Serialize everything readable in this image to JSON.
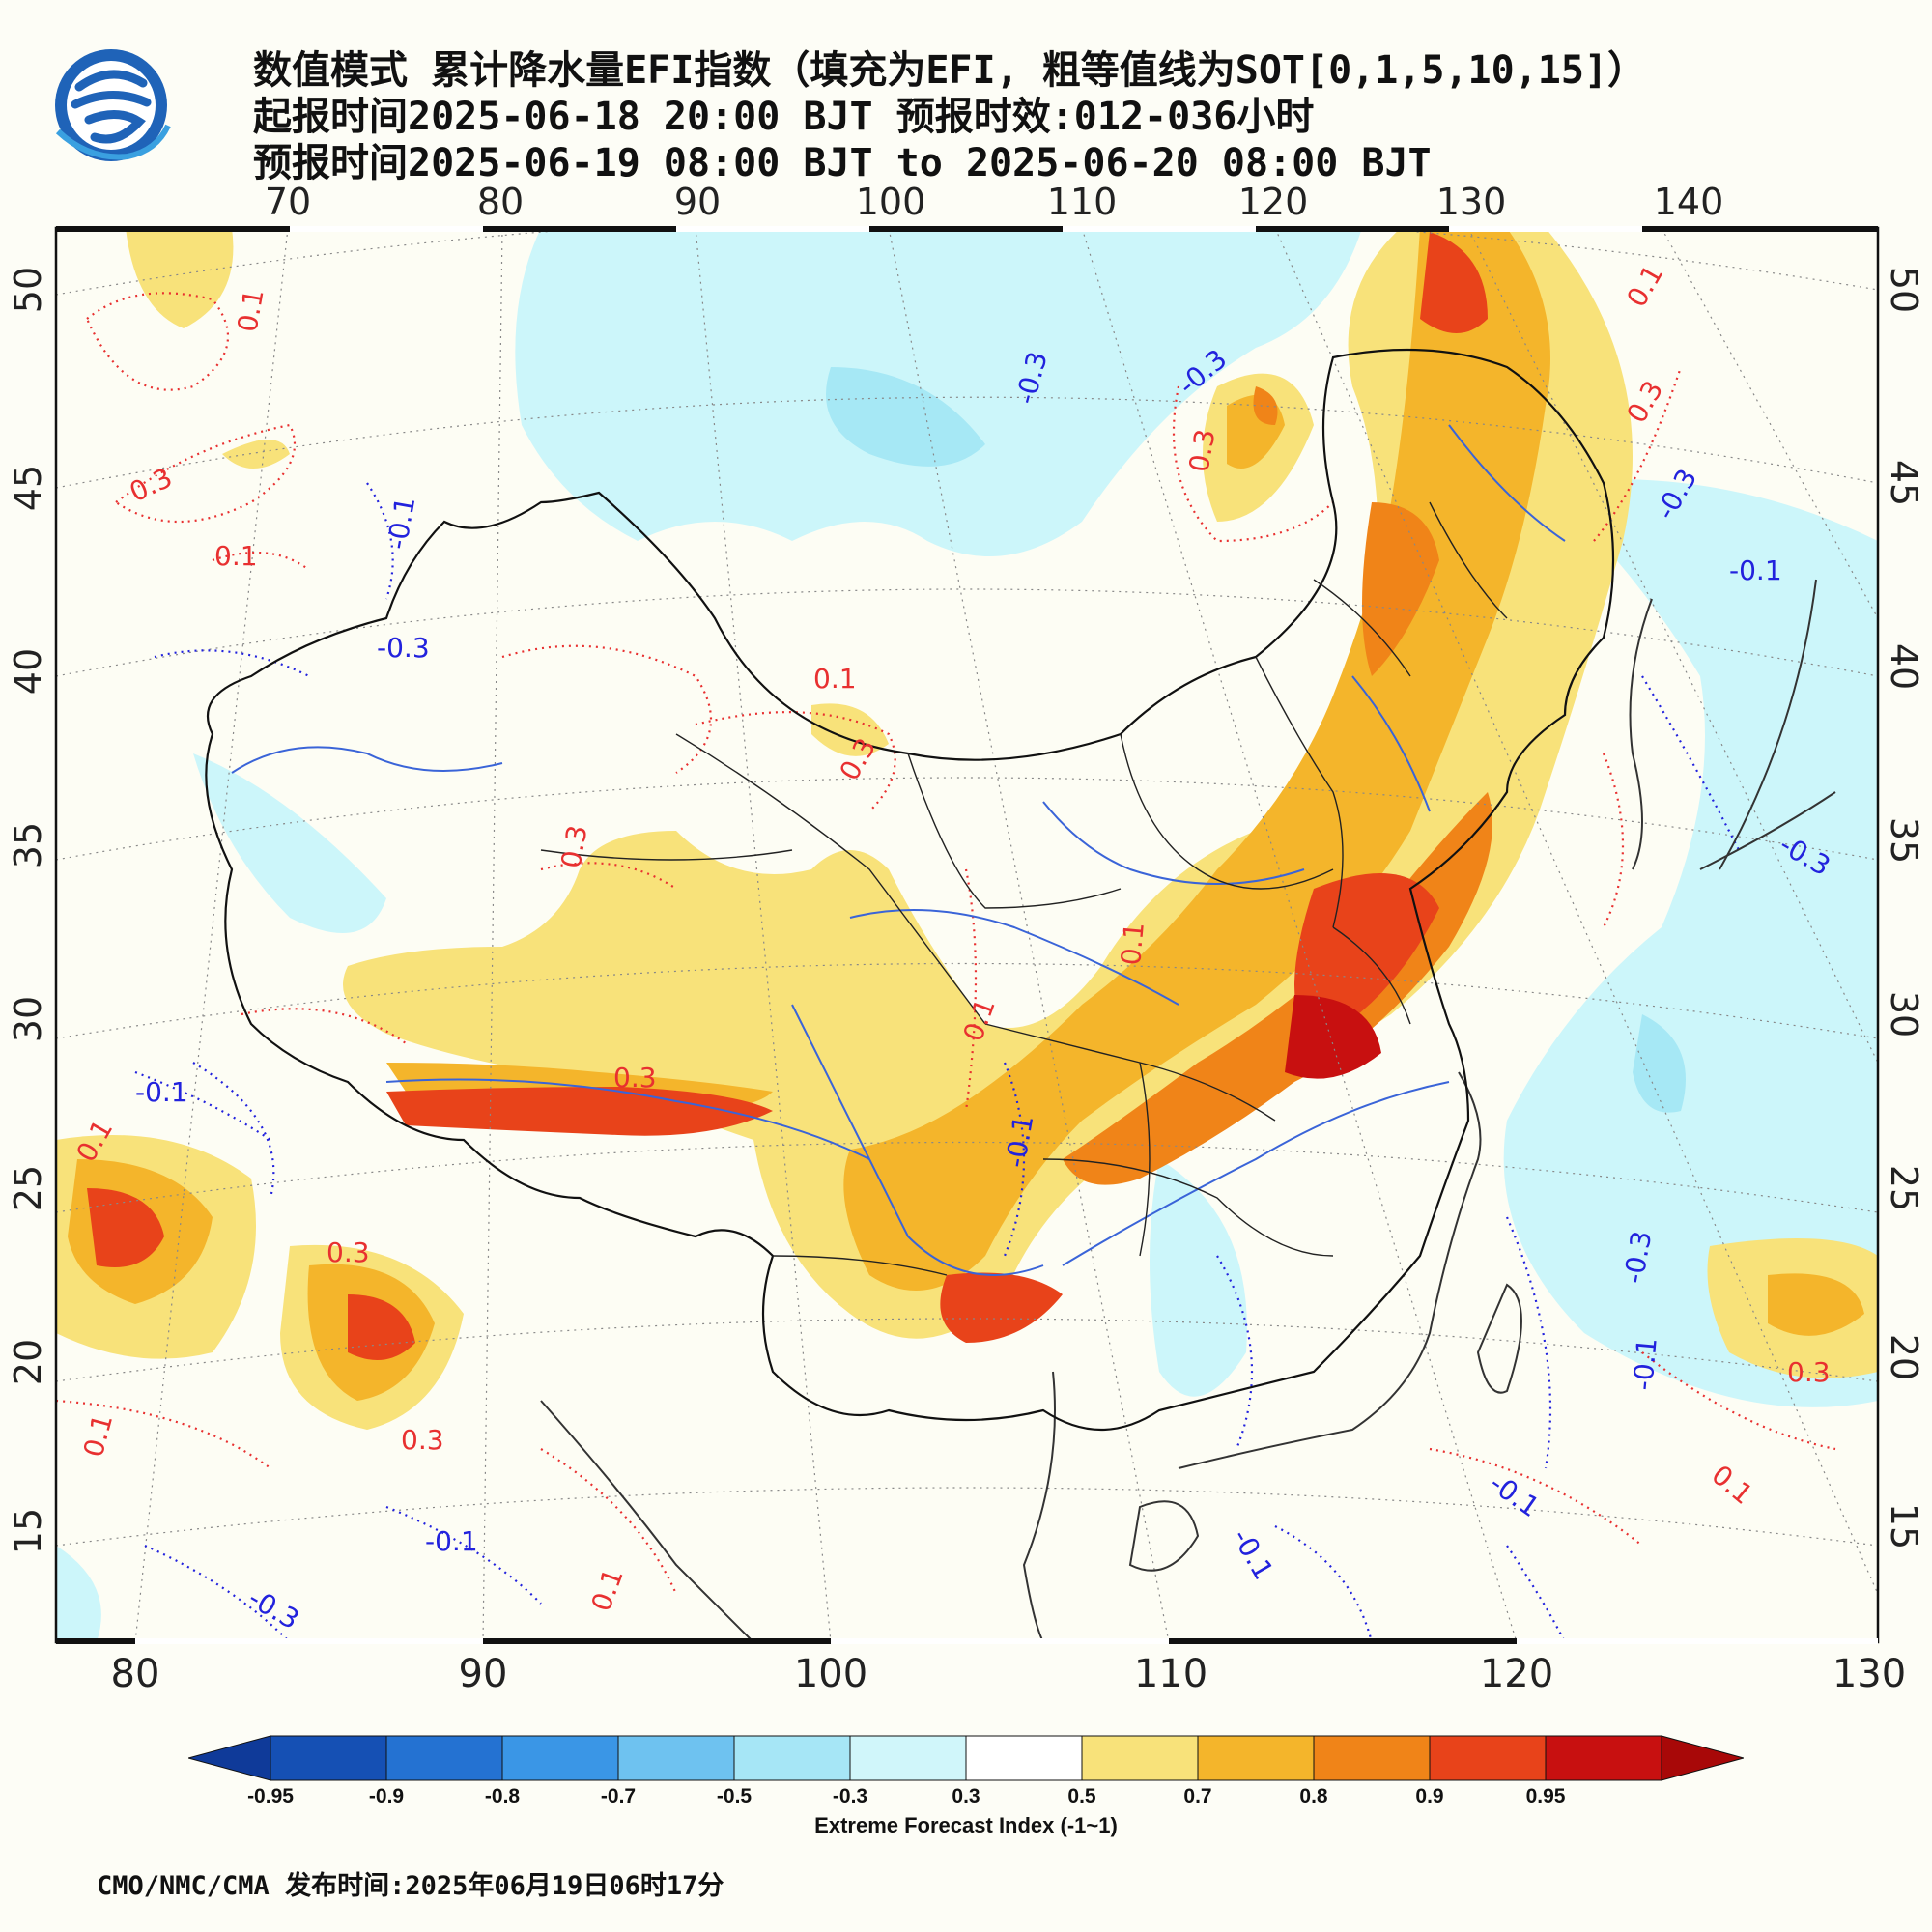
{
  "header": {
    "title_line1": "数值模式 累计降水量EFI指数（填充为EFI, 粗等值线为SOT[0,1,5,10,15]）",
    "title_line2": "起报时间2025-06-18 20:00 BJT 预报时效:012-036小时",
    "title_line3": "预报时间2025-06-19 08:00 BJT to 2025-06-20 08:00 BJT"
  },
  "map": {
    "top_lon_labels": [
      "70",
      "80",
      "90",
      "100",
      "110",
      "120",
      "130",
      "140"
    ],
    "bottom_lon_labels": [
      "80",
      "90",
      "100",
      "110",
      "120",
      "130"
    ],
    "lat_labels": [
      "50",
      "45",
      "40",
      "35",
      "30",
      "25",
      "20",
      "15"
    ],
    "contour_labels_red": [
      "0.1",
      "0.3",
      "0.1",
      "0.3",
      "0.1",
      "0.3",
      "0.3",
      "0.3",
      "0.3",
      "0.1",
      "0.3",
      "0.1",
      "0.1",
      "0.3",
      "0.1",
      "0.1",
      "0.1",
      "0.3",
      "0.1"
    ],
    "contour_labels_blue": [
      "-0.3",
      "-0.3",
      "-0.1",
      "-0.3",
      "-0.1",
      "-0.1",
      "-0.3",
      "-0.1",
      "-0.3",
      "-0.1",
      "-0.3",
      "-0.1",
      "-0.1",
      "-0.1",
      "-0.3"
    ],
    "colors": {
      "ocean_neg": "#ccf6fa",
      "neg_03": "#a6e8f5",
      "pos_03": "#f8e27a",
      "pos_05": "#f4b52b",
      "pos_07": "#f08418",
      "pos_08": "#e8431a",
      "pos_09": "#c81010",
      "red_contour": "#e83030",
      "blue_contour": "#2222dd",
      "river": "#3a64d8",
      "border": "#111111"
    }
  },
  "colorbar": {
    "labels": [
      "-0.95",
      "-0.9",
      "-0.8",
      "-0.7",
      "-0.5",
      "-0.3",
      "0.3",
      "0.5",
      "0.7",
      "0.8",
      "0.9",
      "0.95"
    ],
    "colors": [
      "#1550b4",
      "#2472d2",
      "#3a96e6",
      "#6ec2f0",
      "#a6e6f6",
      "#d0f6fa",
      "#ffffff",
      "#f8e27a",
      "#f4b52b",
      "#f08418",
      "#e8431a",
      "#c81010"
    ],
    "left_arrow_color": "#0f3a99",
    "right_arrow_color": "#a80808",
    "caption": "Extreme Forecast Index (-1~1)"
  },
  "footer": {
    "text": "CMO/NMC/CMA 发布时间:2025年06月19日06时17分"
  }
}
